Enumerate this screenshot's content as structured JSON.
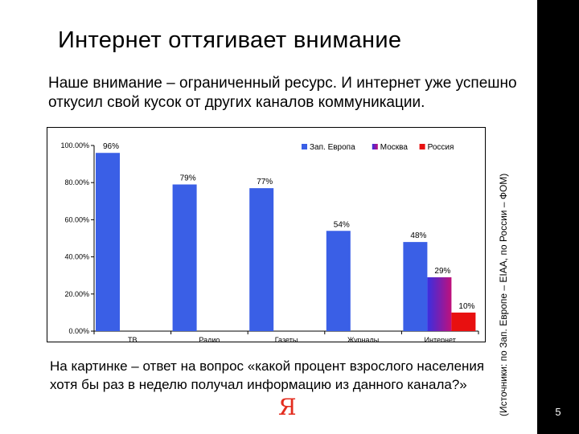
{
  "slide": {
    "title": "Интернет оттягивает внимание",
    "subtitle": "Наше внимание – ограниченный ресурс. И интернет уже успешно откусил свой кусок от других каналов коммуникации.",
    "caption": "На картинке – ответ на вопрос «какой процент взрослого населения хотя бы раз в неделю получал информацию из данного канала?»",
    "source": "(Источники: по Зап. Европе – EIAA, по России – ФОМ)",
    "page_number": "5",
    "logo_text": "Я"
  },
  "colors": {
    "background": "#ffffff",
    "right_bar": "#000000",
    "logo": "#e32d1f",
    "west_europe": "#3a5fe6",
    "moscow": "#7a1fb0",
    "russia": "#e81010"
  },
  "chart_data": {
    "type": "bar",
    "categories": [
      "ТВ",
      "Радио",
      "Газеты",
      "Журналы",
      "Интернет"
    ],
    "series": [
      {
        "name": "Зап. Европа",
        "values": [
          96,
          79,
          77,
          54,
          48
        ],
        "labels": [
          "96%",
          "79%",
          "77%",
          "54%",
          "48%"
        ]
      },
      {
        "name": "Москва",
        "values": [
          null,
          null,
          null,
          null,
          29
        ],
        "labels": [
          "",
          "",
          "",
          "",
          "29%"
        ]
      },
      {
        "name": "Россия",
        "values": [
          null,
          null,
          null,
          null,
          10
        ],
        "labels": [
          "",
          "",
          "",
          "",
          "10%"
        ]
      }
    ],
    "ylim": [
      0,
      100
    ],
    "yticks": [
      0,
      20,
      40,
      60,
      80,
      100
    ],
    "ytick_labels": [
      "0.00%",
      "20.00%",
      "40.00%",
      "60.00%",
      "80.00%",
      "100.00%"
    ],
    "legend": "top-right",
    "grid": false
  }
}
